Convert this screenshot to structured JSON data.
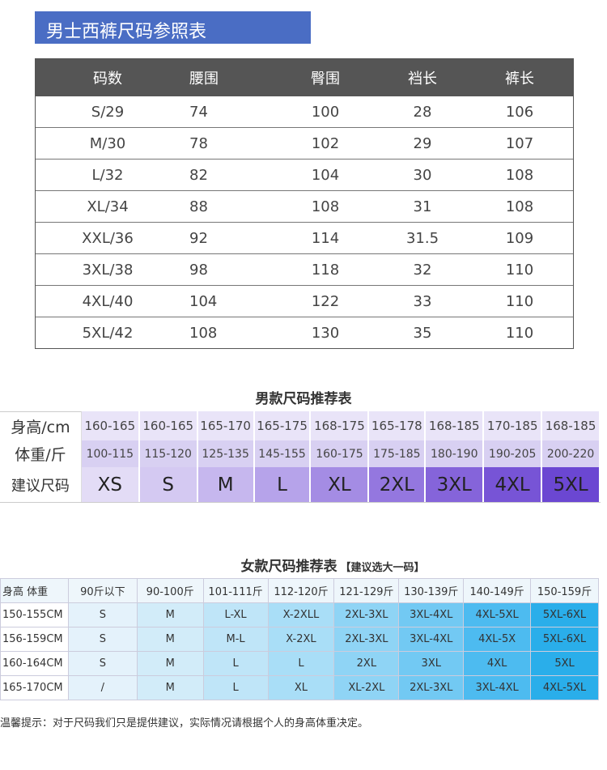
{
  "banner": {
    "title": "男士西裤尺码参照表"
  },
  "pants_table": {
    "headers": [
      "码数",
      "腰围",
      "臀围",
      "裆长",
      "裤长"
    ],
    "rows": [
      [
        "S/29",
        "74",
        "100",
        "28",
        "106"
      ],
      [
        "M/30",
        "78",
        "102",
        "29",
        "107"
      ],
      [
        "L/32",
        "82",
        "104",
        "30",
        "108"
      ],
      [
        "XL/34",
        "88",
        "108",
        "31",
        "108"
      ],
      [
        "XXL/36",
        "92",
        "114",
        "31.5",
        "109"
      ],
      [
        "3XL/38",
        "98",
        "118",
        "32",
        "110"
      ],
      [
        "4XL/40",
        "104",
        "122",
        "33",
        "110"
      ],
      [
        "5XL/42",
        "108",
        "130",
        "35",
        "110"
      ]
    ]
  },
  "men_table": {
    "title": "男款尺码推荐表",
    "height_label": "身高/cm",
    "weight_label": "体重/斤",
    "size_label": "建议尺码",
    "heights": [
      "160-165",
      "160-165",
      "165-170",
      "165-175",
      "168-175",
      "165-178",
      "168-185",
      "170-185",
      "168-185"
    ],
    "weights": [
      "100-115",
      "115-120",
      "125-135",
      "145-155",
      "160-175",
      "175-185",
      "180-190",
      "190-205",
      "200-220"
    ],
    "sizes": [
      "XS",
      "S",
      "M",
      "L",
      "XL",
      "2XL",
      "3XL",
      "4XL",
      "5XL"
    ],
    "size_colors": [
      "#e3dcf6",
      "#d4c9f2",
      "#c6b7ee",
      "#b6a3ea",
      "#a48ce4",
      "#9477df",
      "#8564da",
      "#7754d6",
      "#6b47d2"
    ]
  },
  "women_table": {
    "title": "女款尺码推荐表",
    "subtitle": "【建议选大一码】",
    "corner_label": "身高 体重",
    "weights": [
      "90斤以下",
      "90-100斤",
      "101-111斤",
      "112-120斤",
      "121-129斤",
      "130-139斤",
      "140-149斤",
      "150-159斤"
    ],
    "rows": [
      {
        "height": "150-155CM",
        "sizes": [
          "S",
          "M",
          "L-XL",
          "X-2XLL",
          "2XL-3XL",
          "3XL-4XL",
          "4XL-5XL",
          "5XL-6XL"
        ]
      },
      {
        "height": "156-159CM",
        "sizes": [
          "S",
          "M",
          "M-L",
          "X-2XL",
          "2XL-3XL",
          "3XL-4XL",
          "4XL-5X",
          "5XL-6XL"
        ]
      },
      {
        "height": "160-164CM",
        "sizes": [
          "S",
          "M",
          "L",
          "L",
          "2XL",
          "3XL",
          "4XL",
          "5XL"
        ]
      },
      {
        "height": "165-170CM",
        "sizes": [
          "/",
          "M",
          "L",
          "XL",
          "XL-2XL",
          "2XL-3XL",
          "3XL-4XL",
          "4XL-5XL"
        ]
      }
    ],
    "column_colors": [
      "#e4f2fb",
      "#d2ecf9",
      "#bfe5f8",
      "#a9def7",
      "#8fd4f5",
      "#72c9f3",
      "#4dbbf0",
      "#2aaeea"
    ],
    "note": "温馨提示：对于尺码我们只是提供建议，实际情况请根据个人的身高体重决定。"
  }
}
